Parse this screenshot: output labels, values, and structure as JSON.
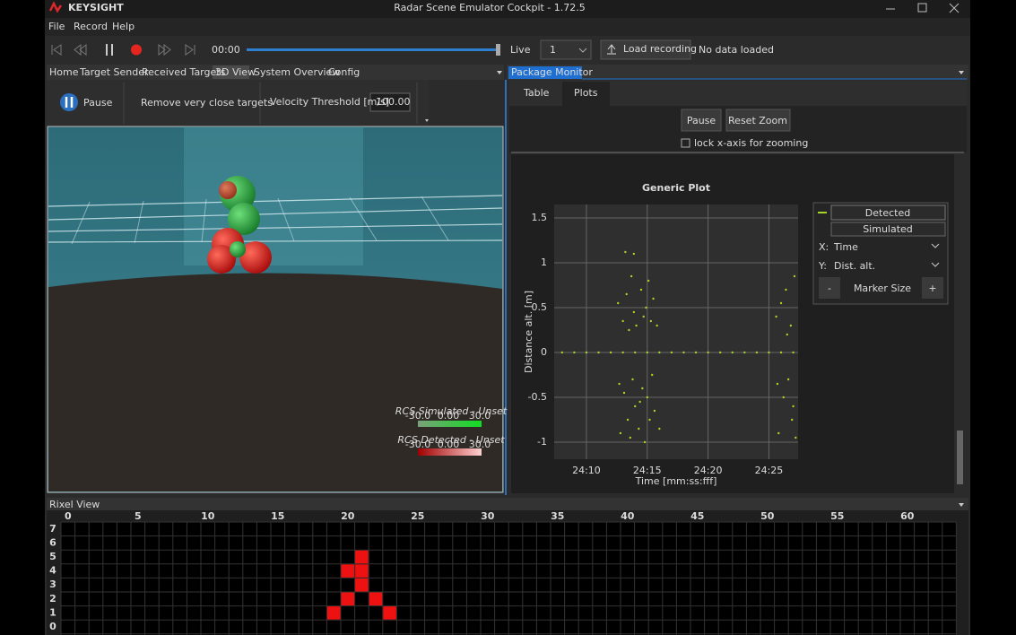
{
  "window": {
    "logo": "KEYSIGHT",
    "title": "Radar Scene Emulator Cockpit - 1.72.5"
  },
  "menu": [
    "File",
    "Record",
    "Help"
  ],
  "toolbar": {
    "time": "00:00",
    "live": "Live",
    "channel": "1",
    "load": "Load recording",
    "status": "No data loaded"
  },
  "left_tabs": [
    "Home",
    "Target Sender",
    "Received Targets",
    "3D View",
    "System Overview",
    "Config"
  ],
  "view_toolbar": {
    "pause": "Pause",
    "remove": "Remove very close targets",
    "threshold_label": "Velocity Threshold [m/s]",
    "threshold": "100.00"
  },
  "legend_3d": [
    {
      "title": "RCS Simulated - Unset",
      "min": "-30.0",
      "mid": "0.00",
      "max": "30.0"
    },
    {
      "title": "RCS Detected - Unset",
      "min": "-30.0",
      "mid": "0.00",
      "max": "30.0"
    }
  ],
  "package_monitor": {
    "title": "Package Monitor",
    "tabs": [
      "Table",
      "Plots"
    ],
    "pause": "Pause",
    "reset": "Reset Zoom",
    "lock": "lock x-axis for zooming"
  },
  "plot_controls": {
    "x_label": "X:",
    "x_value": "Time",
    "y_label": "Y:",
    "y_value": "Dist. alt.",
    "minus": "-",
    "marker": "Marker Size",
    "plus": "+"
  },
  "chart_data": {
    "type": "scatter",
    "title": "Generic Plot",
    "x_label": "Time [mm:ss:fff]",
    "y_label": "Distance alt. [m]",
    "xlim": [
      1447.35,
      1467.4
    ],
    "ylim": [
      -1.19,
      1.65
    ],
    "xticks": [
      {
        "value": 1450,
        "label": "24:10"
      },
      {
        "value": 1455,
        "label": "24:15"
      },
      {
        "value": 1460,
        "label": "24:20"
      },
      {
        "value": 1465,
        "label": "24:25"
      }
    ],
    "yticks": [
      1.5,
      1,
      0.5,
      0,
      -0.5,
      -1
    ],
    "grid": true,
    "series": [
      {
        "name": "Detected",
        "color": "#a8d42a",
        "x": [
          1452.6,
          1452.7,
          1452.8,
          1453.0,
          1453.1,
          1453.2,
          1453.3,
          1453.4,
          1453.5,
          1453.6,
          1453.7,
          1453.8,
          1453.9,
          1454.0,
          1454.1,
          1454.3,
          1454.5,
          1454.6,
          1454.7,
          1454.8,
          1454.9,
          1455.0,
          1455.1,
          1455.2,
          1455.3,
          1455.4,
          1455.5,
          1455.6,
          1455.8,
          1456.0,
          1453.9,
          1454.4,
          1465.6,
          1465.7,
          1465.8,
          1466.0,
          1466.2,
          1466.4,
          1466.6,
          1466.8,
          1467.0,
          1467.1,
          1467.2,
          1466.5,
          1466.9,
          1448,
          1449,
          1450,
          1451,
          1452,
          1453,
          1454,
          1455,
          1456,
          1457,
          1458,
          1459,
          1460,
          1461,
          1462,
          1463,
          1464,
          1465,
          1466,
          1467
        ],
        "values": [
          0.55,
          -0.35,
          -0.9,
          0.35,
          -0.45,
          1.12,
          0.65,
          -0.75,
          0.25,
          -0.95,
          0.85,
          -0.3,
          0.45,
          -0.6,
          0.3,
          -0.85,
          0.7,
          -0.4,
          0.4,
          -1.0,
          0.5,
          -0.5,
          0.8,
          -0.75,
          0.35,
          -0.25,
          0.6,
          -0.65,
          0.3,
          -0.85,
          1.1,
          -0.55,
          0.4,
          -0.35,
          -0.9,
          0.55,
          -0.5,
          0.7,
          -0.3,
          0.3,
          -0.6,
          0.85,
          -0.95,
          0.2,
          -0.75,
          0,
          0,
          0,
          0,
          0,
          0,
          0,
          0,
          0,
          0,
          0,
          0,
          0,
          0,
          0,
          0,
          0,
          0,
          0,
          0
        ]
      },
      {
        "name": "Simulated",
        "color": "#4a90d9",
        "x": [],
        "values": []
      }
    ]
  },
  "rixel_view": {
    "title": "Rixel View",
    "x_ticks": [
      0,
      5,
      10,
      15,
      20,
      25,
      30,
      35,
      40,
      45,
      50,
      55,
      60
    ],
    "y_ticks": [
      7,
      6,
      5,
      4,
      3,
      2,
      1,
      0
    ],
    "active_cells": [
      [
        21,
        5
      ],
      [
        20,
        4
      ],
      [
        21,
        4
      ],
      [
        21,
        3
      ],
      [
        20,
        2
      ],
      [
        22,
        2
      ],
      [
        19,
        1
      ],
      [
        23,
        1
      ]
    ]
  }
}
